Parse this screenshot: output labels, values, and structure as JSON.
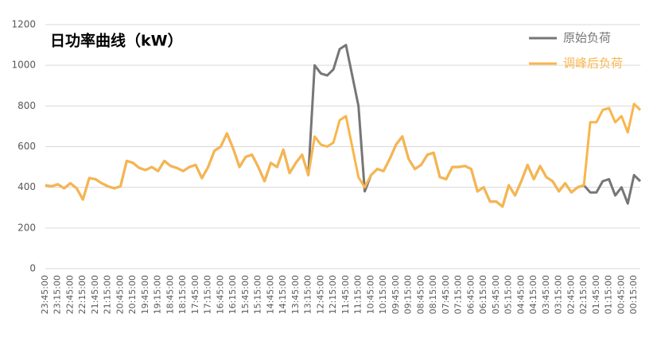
{
  "chart_data": {
    "type": "line",
    "title": "日功率曲线（kW）",
    "categories": [
      "23:45:00",
      null,
      "23:15:00",
      null,
      "22:45:00",
      null,
      "22:15:00",
      null,
      "21:45:00",
      null,
      "21:15:00",
      null,
      "20:45:00",
      null,
      "20:15:00",
      null,
      "19:45:00",
      null,
      "19:15:00",
      null,
      "18:45:00",
      null,
      "18:15:00",
      null,
      "17:45:00",
      null,
      "17:15:00",
      null,
      "16:45:00",
      null,
      "16:15:00",
      null,
      "15:45:00",
      null,
      "15:15:00",
      null,
      "14:45:00",
      null,
      "14:15:00",
      null,
      "13:45:00",
      null,
      "13:15:00",
      null,
      "12:45:00",
      null,
      "12:15:00",
      null,
      "11:45:00",
      null,
      "11:15:00",
      null,
      "10:45:00",
      null,
      "10:15:00",
      null,
      "09:45:00",
      null,
      "09:15:00",
      null,
      "08:45:00",
      null,
      "08:15:00",
      null,
      "07:45:00",
      null,
      "07:15:00",
      null,
      "06:45:00",
      null,
      "06:15:00",
      null,
      "05:45:00",
      null,
      "05:15:00",
      null,
      "04:45:00",
      null,
      "04:15:00",
      null,
      "03:45:00",
      null,
      "03:15:00",
      null,
      "02:45:00",
      null,
      "02:15:00",
      null,
      "01:45:00",
      null,
      "01:15:00",
      null,
      "00:45:00",
      null,
      "00:15:00",
      null
    ],
    "series": [
      {
        "name": "原始负荷",
        "color": "#767676",
        "values": [
          410,
          405,
          415,
          395,
          420,
          395,
          340,
          445,
          440,
          420,
          405,
          395,
          405,
          530,
          520,
          495,
          485,
          500,
          480,
          530,
          505,
          495,
          480,
          500,
          510,
          445,
          500,
          580,
          600,
          665,
          590,
          500,
          550,
          560,
          500,
          430,
          520,
          500,
          585,
          470,
          520,
          560,
          460,
          1000,
          960,
          950,
          980,
          1080,
          1100,
          950,
          800,
          380,
          460,
          490,
          480,
          540,
          610,
          650,
          540,
          490,
          510,
          560,
          570,
          450,
          440,
          500,
          500,
          505,
          490,
          380,
          400,
          330,
          330,
          305,
          410,
          360,
          430,
          510,
          440,
          505,
          450,
          430,
          380,
          420,
          375,
          400,
          410,
          375,
          375,
          430,
          440,
          360,
          400,
          320,
          460,
          430
        ]
      },
      {
        "name": "调峰后负荷",
        "color": "#f9b54c",
        "values": [
          410,
          405,
          415,
          395,
          420,
          395,
          340,
          445,
          440,
          420,
          405,
          395,
          405,
          530,
          520,
          495,
          485,
          500,
          480,
          530,
          505,
          495,
          480,
          500,
          510,
          445,
          500,
          580,
          600,
          665,
          590,
          500,
          550,
          560,
          500,
          430,
          520,
          500,
          585,
          470,
          520,
          560,
          460,
          650,
          610,
          600,
          620,
          730,
          750,
          600,
          450,
          400,
          460,
          490,
          480,
          540,
          610,
          650,
          540,
          490,
          510,
          560,
          570,
          450,
          440,
          500,
          500,
          505,
          490,
          380,
          400,
          330,
          330,
          305,
          410,
          360,
          430,
          510,
          440,
          505,
          450,
          430,
          380,
          420,
          375,
          400,
          410,
          720,
          720,
          780,
          790,
          720,
          750,
          670,
          810,
          780
        ]
      }
    ],
    "ylim": [
      0,
      1200
    ],
    "yticks": [
      0,
      200,
      400,
      600,
      800,
      1000,
      1200
    ],
    "grid": true,
    "legend": "top-right"
  }
}
